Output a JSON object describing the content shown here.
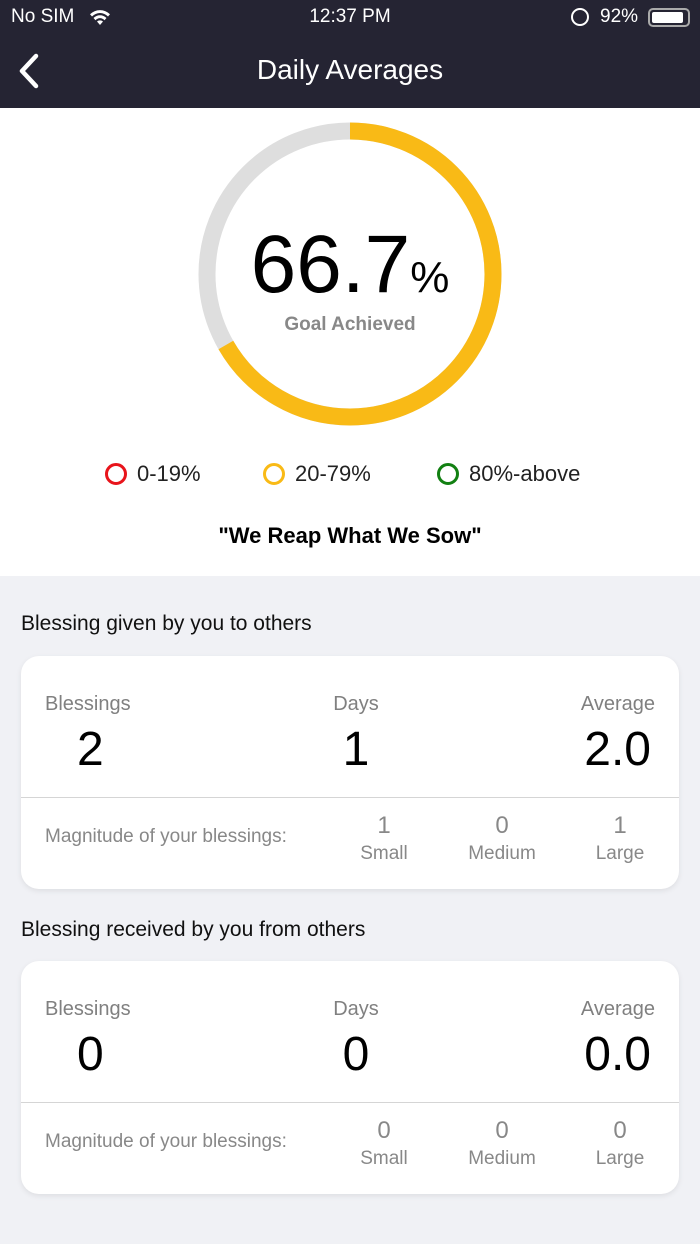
{
  "status_bar": {
    "carrier": "No SIM",
    "time": "12:37 PM",
    "battery": "92%",
    "battery_level": 0.92
  },
  "nav": {
    "title": "Daily Averages"
  },
  "goal": {
    "value": "66.7",
    "unit": "%",
    "label": "Goal Achieved",
    "fraction": 0.667,
    "color": "#F9BA16",
    "track_color": "#DEDEDE"
  },
  "legend": [
    {
      "label": "0-19%",
      "color": "#E8141B"
    },
    {
      "label": "20-79%",
      "color": "#F9BA16"
    },
    {
      "label": "80%-above",
      "color": "#128012"
    }
  ],
  "quote": "\"We Reap What We Sow\"",
  "given": {
    "title": "Blessing given by you to others",
    "blessings_label": "Blessings",
    "blessings": "2",
    "days_label": "Days",
    "days": "1",
    "average_label": "Average",
    "average": "2.0",
    "magnitude_label": "Magnitude of your blessings:",
    "small": "1",
    "small_label": "Small",
    "medium": "0",
    "medium_label": "Medium",
    "large": "1",
    "large_label": "Large"
  },
  "received": {
    "title": "Blessing received by you from others",
    "blessings_label": "Blessings",
    "blessings": "0",
    "days_label": "Days",
    "days": "0",
    "average_label": "Average",
    "average": "0.0",
    "magnitude_label": "Magnitude of your blessings:",
    "small": "0",
    "small_label": "Small",
    "medium": "0",
    "medium_label": "Medium",
    "large": "0",
    "large_label": "Large"
  }
}
